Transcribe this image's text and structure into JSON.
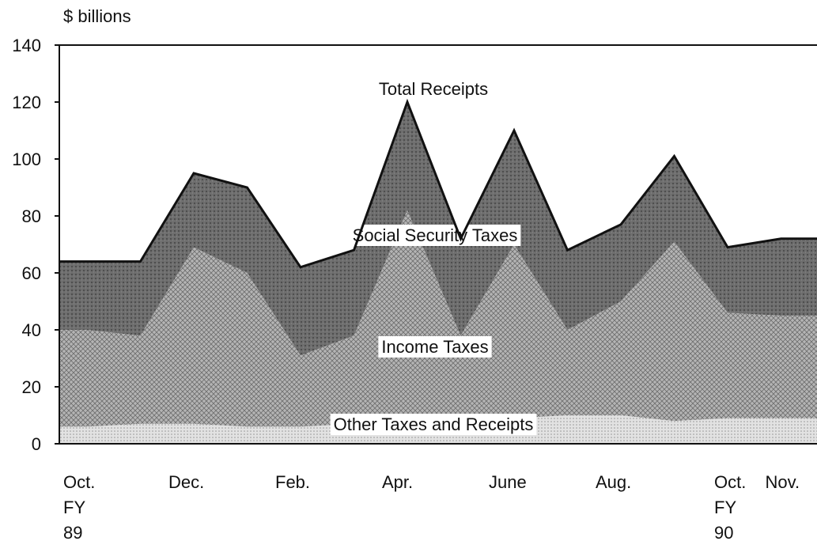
{
  "chart_data": {
    "type": "stacked_area",
    "y_axis_label": "$ billions",
    "annotation": "Total Receipts",
    "categories": [
      "Oct.\nFY\n89",
      null,
      "Dec.",
      null,
      "Feb.",
      null,
      "Apr.",
      null,
      "June",
      null,
      "Aug.",
      null,
      "Oct.\nFY\n90",
      "Nov."
    ],
    "series": [
      {
        "name": "Other Taxes and Receipts",
        "color": "#e2e2e2",
        "values": [
          6,
          7,
          7,
          6,
          6,
          7,
          8,
          8,
          9,
          10,
          10,
          8,
          9,
          9
        ]
      },
      {
        "name": "Income Taxes",
        "color": "#b4b4b4",
        "values": [
          34,
          31,
          62,
          54,
          25,
          31,
          74,
          30,
          61,
          30,
          40,
          63,
          37,
          36
        ]
      },
      {
        "name": "Social Security Taxes",
        "color": "#6e6e6e",
        "values": [
          24,
          26,
          26,
          30,
          31,
          30,
          38,
          34,
          40,
          28,
          27,
          30,
          23,
          27
        ]
      }
    ],
    "ylim": [
      0,
      140
    ],
    "yticks": [
      0,
      20,
      40,
      60,
      80,
      100,
      120,
      140
    ],
    "grid": false
  }
}
